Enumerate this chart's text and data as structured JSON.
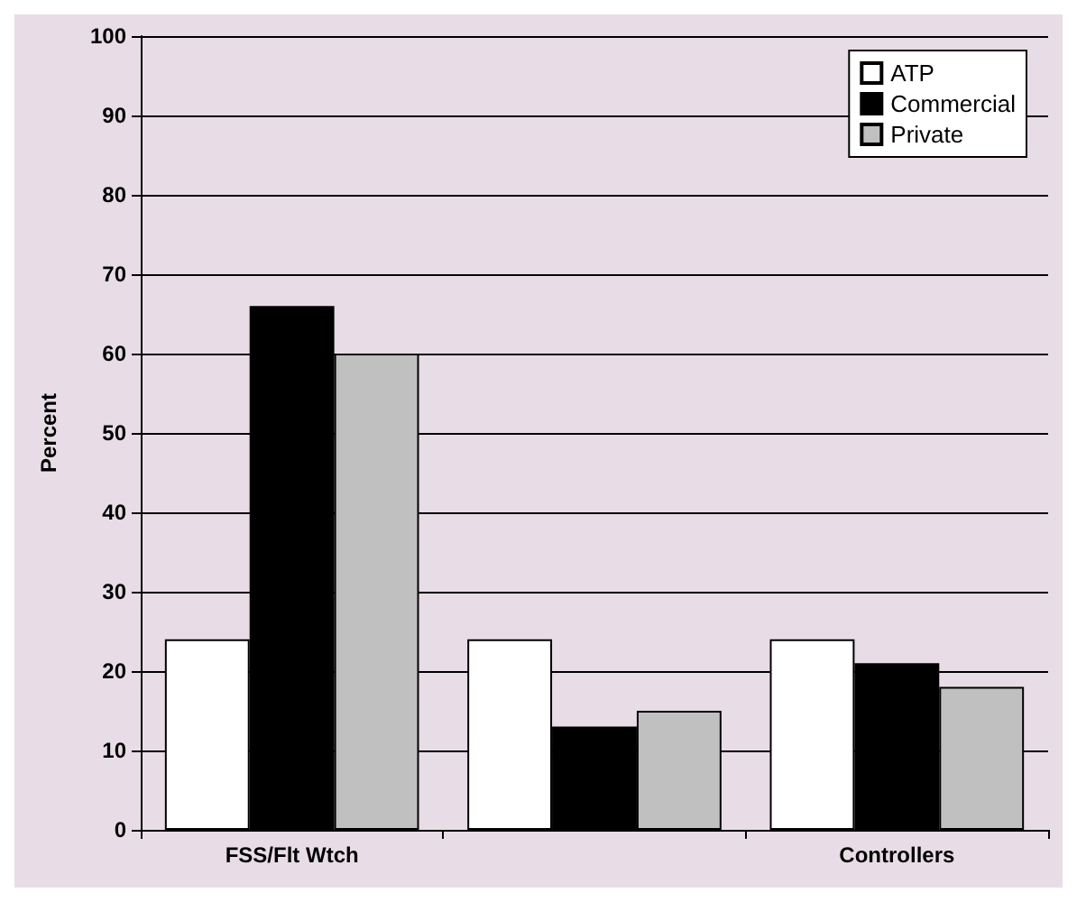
{
  "chart_data": {
    "type": "bar",
    "ylabel": "Percent",
    "categories": [
      "FSS/Flt Wtch",
      null,
      "Controllers"
    ],
    "series": [
      {
        "name": "ATP",
        "color": "#ffffff",
        "values": [
          24,
          24,
          24
        ]
      },
      {
        "name": "Commercial",
        "color": "#000000",
        "values": [
          66,
          13,
          21
        ]
      },
      {
        "name": "Private",
        "color": "#c0c0c0",
        "values": [
          60,
          15,
          18
        ]
      }
    ],
    "ylim": [
      0,
      100
    ],
    "yticks": [
      0,
      10,
      20,
      30,
      40,
      50,
      60,
      70,
      80,
      90,
      100
    ],
    "grid": "y",
    "legend": "top right"
  }
}
